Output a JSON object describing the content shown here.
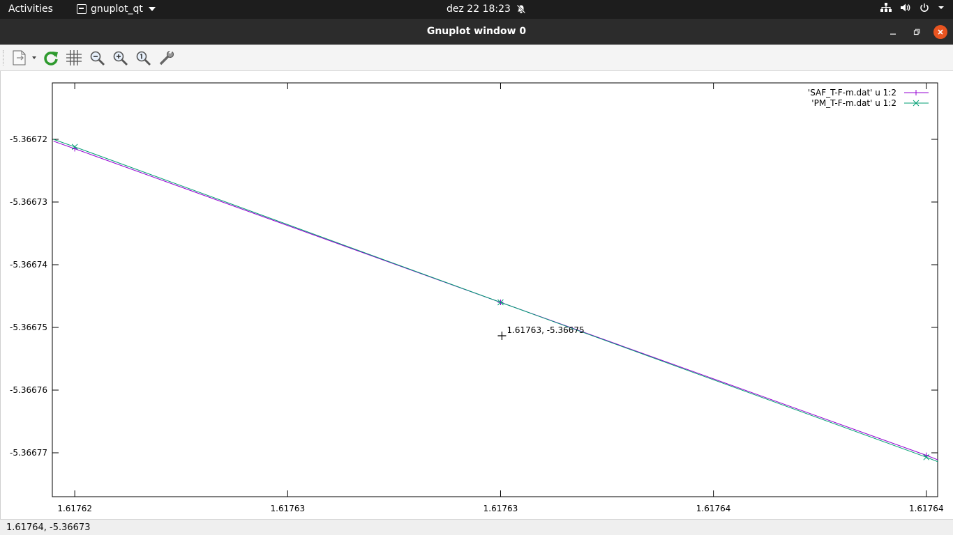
{
  "topbar": {
    "activities": "Activities",
    "app_name": "gnuplot_qt",
    "datetime": "dez 22  18:23"
  },
  "window": {
    "title": "Gnuplot window 0"
  },
  "toolbar": {
    "buttons": [
      "export-icon",
      "replot-icon",
      "grid-icon",
      "zoom-previous-icon",
      "zoom-next-icon",
      "unzoom-icon",
      "settings-icon"
    ]
  },
  "chart_data": {
    "type": "line",
    "x_ticks": [
      "1.61762",
      "1.61763",
      "1.61763",
      "1.61764",
      "1.61764"
    ],
    "y_ticks": [
      "-5.36672",
      "-5.36673",
      "-5.36674",
      "-5.36675",
      "-5.36676",
      "-5.36677"
    ],
    "y_tick_values": [
      -5.36672,
      -5.36673,
      -5.36674,
      -5.36675,
      -5.36676,
      -5.36677
    ],
    "x_tick_values": [
      1.61762,
      1.617625,
      1.61763,
      1.617635,
      1.61764
    ],
    "xlim": [
      1.617619473,
      1.617640266
    ],
    "ylim": [
      -5.366777,
      -5.366711
    ],
    "series": [
      {
        "name": "'SAF_T-F-m.dat' u 1:2",
        "color": "#9400d3",
        "marker": "plus",
        "x": [
          1.6176195,
          1.61762,
          1.61763,
          1.61764,
          1.6176403
        ],
        "y": [
          -5.3667203,
          -5.3667215,
          -5.366746,
          -5.3667704,
          -5.3667712
        ]
      },
      {
        "name": "'PM_T-F-m.dat' u 1:2",
        "color": "#009e73",
        "marker": "cross",
        "x": [
          1.6176195,
          1.61762,
          1.61763,
          1.61764,
          1.6176403
        ],
        "y": [
          -5.36672,
          -5.3667212,
          -5.366746,
          -5.3667707,
          -5.3667715
        ]
      }
    ],
    "legend_position": "top-right",
    "annotation": "1.61763, -5.36675",
    "annotation_point": [
      1.61763,
      -5.36675
    ],
    "grid": false
  },
  "statusbar": {
    "coords": "1.61764, -5.36673"
  }
}
